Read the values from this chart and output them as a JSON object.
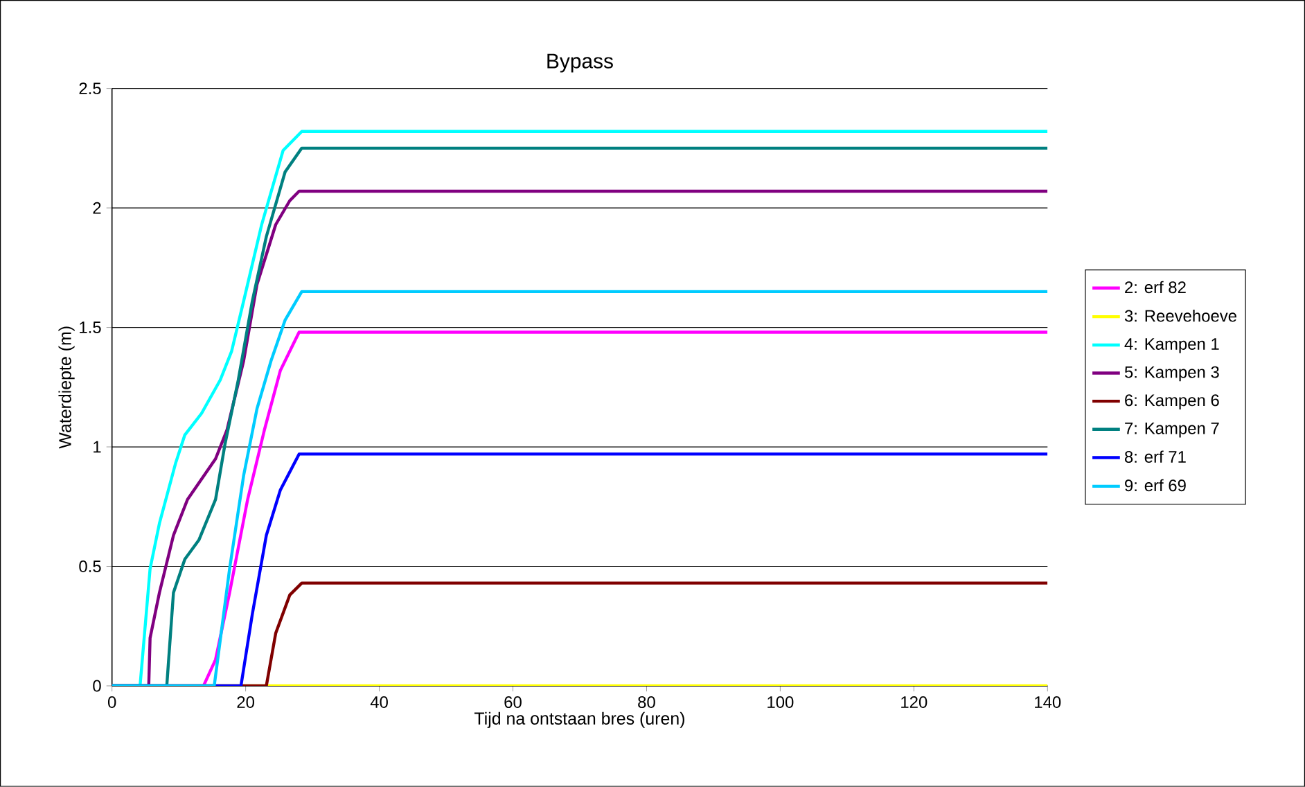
{
  "chart_data": {
    "type": "line",
    "title": "Bypass",
    "xlabel": "Tijd na ontstaan bres (uren)",
    "ylabel": "Waterdiepte (m)",
    "xlim": [
      0,
      140
    ],
    "xticks": [
      0,
      20,
      40,
      60,
      80,
      100,
      120,
      140
    ],
    "ylim": [
      0,
      2.5
    ],
    "yticks": [
      0,
      0.5,
      1,
      1.5,
      2,
      2.5
    ],
    "grid": "y",
    "legend": "right",
    "marker": "none",
    "line_style": "solid",
    "series": [
      {
        "name": "2: erf 82",
        "color": "#ff00ff",
        "x": [
          0,
          13.7,
          15.5,
          17.6,
          20.3,
          22.8,
          25.2,
          28.0,
          140
        ],
        "values": [
          0,
          0,
          0.11,
          0.39,
          0.78,
          1.07,
          1.32,
          1.48,
          1.48
        ]
      },
      {
        "name": "3: Reevehoeve",
        "color": "#ffff00",
        "x": [
          0,
          140
        ],
        "values": [
          0,
          0
        ]
      },
      {
        "name": "4: Kampen 1",
        "color": "#00ffff",
        "x": [
          0,
          4.2,
          5.7,
          7.1,
          9.5,
          10.9,
          13.4,
          16.2,
          17.9,
          19.7,
          22.4,
          25.6,
          28.4,
          140
        ],
        "values": [
          0,
          0,
          0.49,
          0.68,
          0.93,
          1.05,
          1.14,
          1.28,
          1.4,
          1.61,
          1.93,
          2.24,
          2.32,
          2.32
        ]
      },
      {
        "name": "5: Kampen 3",
        "color": "#800080",
        "x": [
          0,
          5.5,
          5.7,
          7.1,
          9.2,
          11.3,
          15.5,
          17.2,
          19.7,
          21.7,
          24.5,
          26.6,
          28.0,
          140
        ],
        "values": [
          0,
          0,
          0.2,
          0.39,
          0.63,
          0.78,
          0.95,
          1.07,
          1.36,
          1.68,
          1.93,
          2.03,
          2.07,
          2.07
        ]
      },
      {
        "name": "6: Kampen 6",
        "color": "#800000",
        "x": [
          0,
          23.1,
          24.5,
          26.6,
          28.4,
          140
        ],
        "values": [
          0,
          0,
          0.22,
          0.38,
          0.43,
          0.43
        ]
      },
      {
        "name": "7: Kampen 7",
        "color": "#008080",
        "x": [
          0,
          8.2,
          9.2,
          10.9,
          13.0,
          15.5,
          16.9,
          18.9,
          21.0,
          23.1,
          25.9,
          28.4,
          140
        ],
        "values": [
          0,
          0,
          0.39,
          0.53,
          0.61,
          0.78,
          1.01,
          1.28,
          1.61,
          1.88,
          2.15,
          2.25,
          2.25
        ]
      },
      {
        "name": "8: erf 71",
        "color": "#0000ff",
        "x": [
          0,
          19.3,
          21.0,
          23.1,
          25.2,
          28.0,
          140
        ],
        "values": [
          0,
          0,
          0.3,
          0.63,
          0.82,
          0.97,
          0.97
        ]
      },
      {
        "name": "9: erf 69",
        "color": "#00ccff",
        "x": [
          0,
          15.3,
          17.6,
          19.7,
          21.7,
          23.8,
          25.9,
          28.4,
          140
        ],
        "values": [
          0,
          0,
          0.49,
          0.88,
          1.16,
          1.36,
          1.53,
          1.65,
          1.65
        ]
      }
    ]
  }
}
